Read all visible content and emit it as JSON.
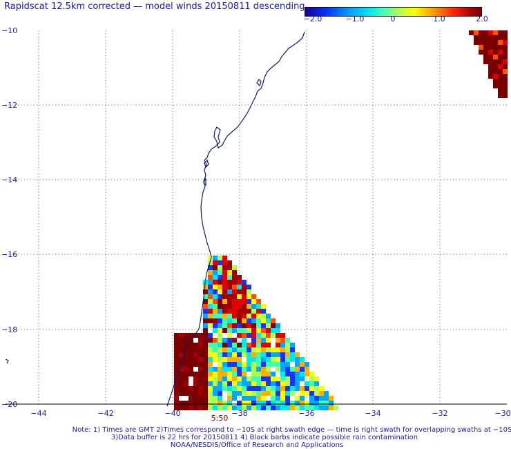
{
  "title": "Rapidscat 12.5km corrected — model winds 20150811 descending",
  "colorbar": {
    "labels": [
      "−2.0",
      "−1.0",
      "0",
      "1.0",
      "2.0"
    ],
    "min": -2.0,
    "max": 2.0
  },
  "axes": {
    "x_ticks": [
      "−44",
      "−42",
      "−40",
      "−38",
      "−36",
      "−34",
      "−32",
      "−30"
    ],
    "y_ticks": [
      "−10",
      "−12",
      "−14",
      "−16",
      "−18",
      "−20"
    ],
    "lon_range": [
      -45,
      -30
    ],
    "lat_range": [
      -20,
      -10
    ]
  },
  "time_label": "5:50",
  "notes": {
    "line1": "Note: 1) Times are GMT 2)Times correspond to −10S at right swath edge — time is right swath for overlapping swaths at −10S",
    "line2": "3)Data buffer is 22 hrs for 20150811 4) Black barbs indicate possible rain contamination",
    "line3": "NOAA/NESDIS/Office of Research and Applications"
  },
  "colors": {
    "text": "#1a1aa6",
    "coast": "#0b1e6e",
    "grid": "#444444"
  }
}
